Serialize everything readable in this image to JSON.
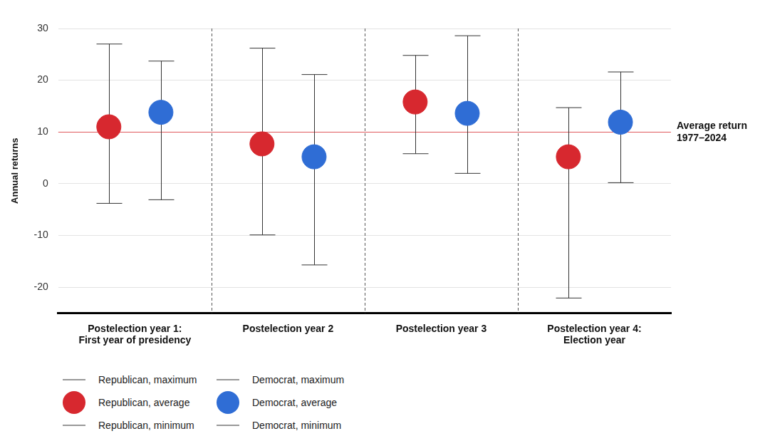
{
  "chart_data": {
    "type": "range",
    "y_label": "Annual returns",
    "categories": [
      [
        "Postelection year 1:",
        "First year of presidency"
      ],
      [
        "Postelection year 2"
      ],
      [
        "Postelection year 3"
      ],
      [
        "Postelection year 4:",
        "Election year"
      ]
    ],
    "series": [
      {
        "name": "Republican",
        "color": "#d7282f",
        "values": [
          11.0,
          7.7,
          15.8,
          5.2
        ],
        "max": [
          27.0,
          26.2,
          24.8,
          14.7
        ],
        "min": [
          -3.8,
          -9.9,
          5.8,
          -22.1
        ],
        "legend_labels": {
          "maximum": "Republican, maximum",
          "average": "Republican, average",
          "minimum": "Republican, minimum"
        }
      },
      {
        "name": "Democrat",
        "color": "#2f6dd5",
        "values": [
          13.8,
          5.2,
          13.6,
          11.9
        ],
        "max": [
          23.7,
          21.1,
          28.6,
          21.6
        ],
        "min": [
          -3.1,
          -15.7,
          2.0,
          0.2
        ],
        "legend_labels": {
          "maximum": "Democrat, maximum",
          "average": "Democrat, average",
          "minimum": "Democrat, minimum"
        }
      }
    ],
    "reference_line": {
      "value": 10,
      "label": [
        "Average return",
        "1977–2024"
      ],
      "color": "#e0575b"
    },
    "ylim": [
      -25,
      30
    ],
    "yticks": [
      -20,
      -10,
      0,
      10,
      20,
      30
    ],
    "grid": true,
    "legend": "bottom"
  }
}
